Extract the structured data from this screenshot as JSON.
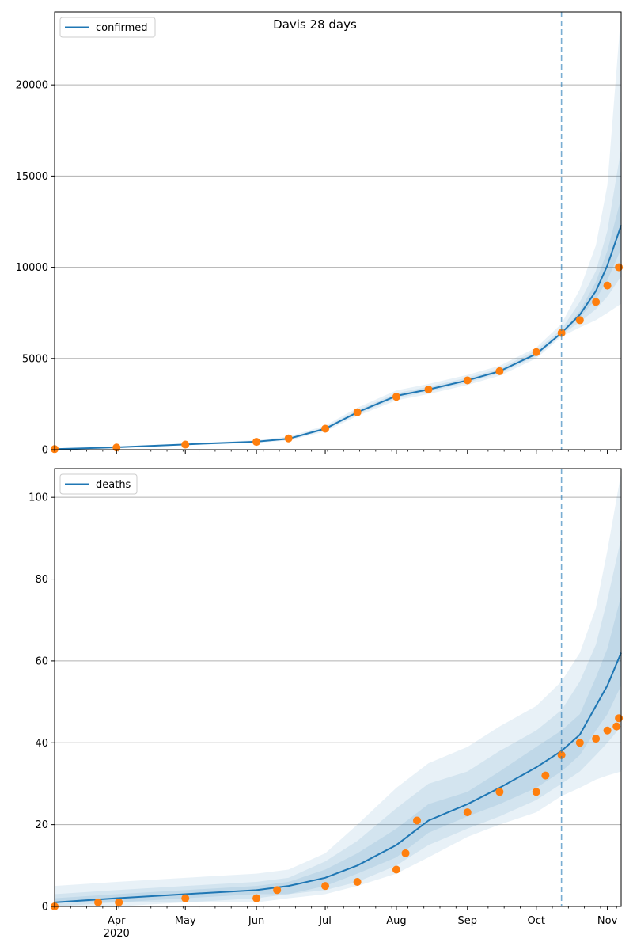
{
  "title": "Davis 28 days",
  "colors": {
    "model": "#1f77b4",
    "observed": "#ff7f0e",
    "band": "#1f77b4",
    "grid": "#b0b0b0",
    "vline": "#1f77b4"
  },
  "chart_data": [
    {
      "type": "line",
      "legend": "confirmed",
      "legend_loc": "upper-left",
      "grid": "y",
      "x_axis": {
        "start": "2020-03-05",
        "end": "2020-11-07",
        "ticks": [
          "Apr",
          "May",
          "Jun",
          "Jul",
          "Aug",
          "Sep",
          "Oct",
          "Nov"
        ],
        "year_label": "2020"
      },
      "ylim": [
        0,
        24000
      ],
      "yticks": [
        "0",
        "5000",
        "10000",
        "15000",
        "20000"
      ],
      "forecast_start": "2020-10-12",
      "model": {
        "x": [
          "2020-03-05",
          "2020-04-01",
          "2020-05-01",
          "2020-06-01",
          "2020-06-15",
          "2020-07-01",
          "2020-07-15",
          "2020-08-01",
          "2020-08-15",
          "2020-09-01",
          "2020-09-15",
          "2020-10-01",
          "2020-10-12",
          "2020-10-20",
          "2020-10-27",
          "2020-11-01",
          "2020-11-07"
        ],
        "y": [
          30,
          130,
          290,
          440,
          600,
          1150,
          2050,
          2950,
          3300,
          3800,
          4300,
          5250,
          6400,
          7400,
          8700,
          10100,
          12300
        ],
        "bands": [
          {
            "lo": [
              20,
              110,
              250,
              380,
              500,
              1000,
              1850,
              2700,
              3050,
              3550,
              4050,
              5000,
              6200,
              6700,
              7100,
              7500,
              8000
            ],
            "hi": [
              40,
              160,
              340,
              520,
              720,
              1320,
              2300,
              3250,
              3600,
              4100,
              4600,
              5600,
              6900,
              8800,
              11200,
              14500,
              24000
            ]
          },
          {
            "lo": [
              25,
              120,
              270,
              410,
              550,
              1080,
              1950,
              2820,
              3180,
              3680,
              4180,
              5120,
              6300,
              7000,
              7700,
              8400,
              9500
            ],
            "hi": [
              35,
              145,
              315,
              480,
              660,
              1230,
              2170,
              3100,
              3450,
              3950,
              4450,
              5450,
              6600,
              8100,
              9800,
              12000,
              16500
            ]
          },
          {
            "lo": [
              28,
              126,
              282,
              428,
              580,
              1120,
              2010,
              2900,
              3250,
              3750,
              4250,
              5200,
              6350,
              7250,
              8250,
              9300,
              11000
            ],
            "hi": [
              32,
              136,
              300,
              455,
              620,
              1180,
              2100,
              3020,
              3360,
              3860,
              4360,
              5320,
              6450,
              7600,
              9200,
              10900,
              13800
            ]
          }
        ]
      },
      "observed": {
        "x": [
          "2020-03-05",
          "2020-04-01",
          "2020-05-01",
          "2020-06-01",
          "2020-06-15",
          "2020-07-01",
          "2020-07-15",
          "2020-08-01",
          "2020-08-15",
          "2020-09-01",
          "2020-09-15",
          "2020-10-01",
          "2020-10-12",
          "2020-10-20",
          "2020-10-27",
          "2020-11-01",
          "2020-11-06"
        ],
        "y": [
          30,
          120,
          280,
          430,
          620,
          1150,
          2050,
          2900,
          3300,
          3800,
          4300,
          5350,
          6400,
          7100,
          8100,
          9000,
          10000
        ]
      }
    },
    {
      "type": "line",
      "legend": "deaths",
      "legend_loc": "upper-left",
      "grid": "y",
      "x_axis": {
        "start": "2020-03-05",
        "end": "2020-11-07",
        "ticks": [
          "Apr",
          "May",
          "Jun",
          "Jul",
          "Aug",
          "Sep",
          "Oct",
          "Nov"
        ],
        "year_label": "2020"
      },
      "ylim": [
        0,
        107
      ],
      "yticks": [
        "0",
        "20",
        "40",
        "60",
        "80",
        "100"
      ],
      "forecast_start": "2020-10-12",
      "model": {
        "x": [
          "2020-03-05",
          "2020-04-01",
          "2020-05-01",
          "2020-06-01",
          "2020-06-15",
          "2020-07-01",
          "2020-07-15",
          "2020-08-01",
          "2020-08-15",
          "2020-09-01",
          "2020-09-15",
          "2020-10-01",
          "2020-10-12",
          "2020-10-20",
          "2020-10-27",
          "2020-11-01",
          "2020-11-07"
        ],
        "y": [
          1,
          2,
          3,
          4,
          5,
          7,
          10,
          15,
          21,
          25,
          29,
          34,
          38,
          42,
          49,
          54,
          62
        ],
        "bands": [
          {
            "lo": [
              0,
              0,
              1,
              1,
              2,
              3,
              5,
              8,
              12,
              17,
              20,
              23,
              27,
              29,
              31,
              32,
              33
            ],
            "hi": [
              5,
              6,
              7,
              8,
              9,
              13,
              20,
              29,
              35,
              39,
              44,
              49,
              55,
              62,
              73,
              87,
              106
            ]
          },
          {
            "lo": [
              0,
              1,
              1,
              2,
              3,
              4,
              6,
              10,
              15,
              19,
              22,
              26,
              30,
              33,
              37,
              40,
              44
            ],
            "hi": [
              3,
              4,
              5,
              6,
              7,
              11,
              16,
              24,
              30,
              33,
              38,
              43,
              48,
              55,
              64,
              75,
              90
            ]
          },
          {
            "lo": [
              1,
              1,
              2,
              3,
              3,
              5,
              8,
              12,
              18,
              22,
              25,
              29,
              33,
              37,
              43,
              47,
              54
            ],
            "hi": [
              2,
              3,
              4,
              5,
              6,
              9,
              13,
              19,
              25,
              28,
              33,
              39,
              43,
              47,
              56,
              63,
              76
            ]
          }
        ]
      },
      "observed": {
        "x": [
          "2020-03-05",
          "2020-03-24",
          "2020-04-02",
          "2020-05-01",
          "2020-06-01",
          "2020-06-10",
          "2020-07-01",
          "2020-07-15",
          "2020-08-01",
          "2020-08-05",
          "2020-08-10",
          "2020-09-01",
          "2020-09-15",
          "2020-10-01",
          "2020-10-05",
          "2020-10-12",
          "2020-10-20",
          "2020-10-27",
          "2020-11-01",
          "2020-11-05",
          "2020-11-06"
        ],
        "y": [
          0,
          1,
          1,
          2,
          2,
          4,
          5,
          6,
          9,
          13,
          21,
          23,
          28,
          28,
          32,
          37,
          40,
          41,
          43,
          44,
          46
        ]
      }
    }
  ]
}
